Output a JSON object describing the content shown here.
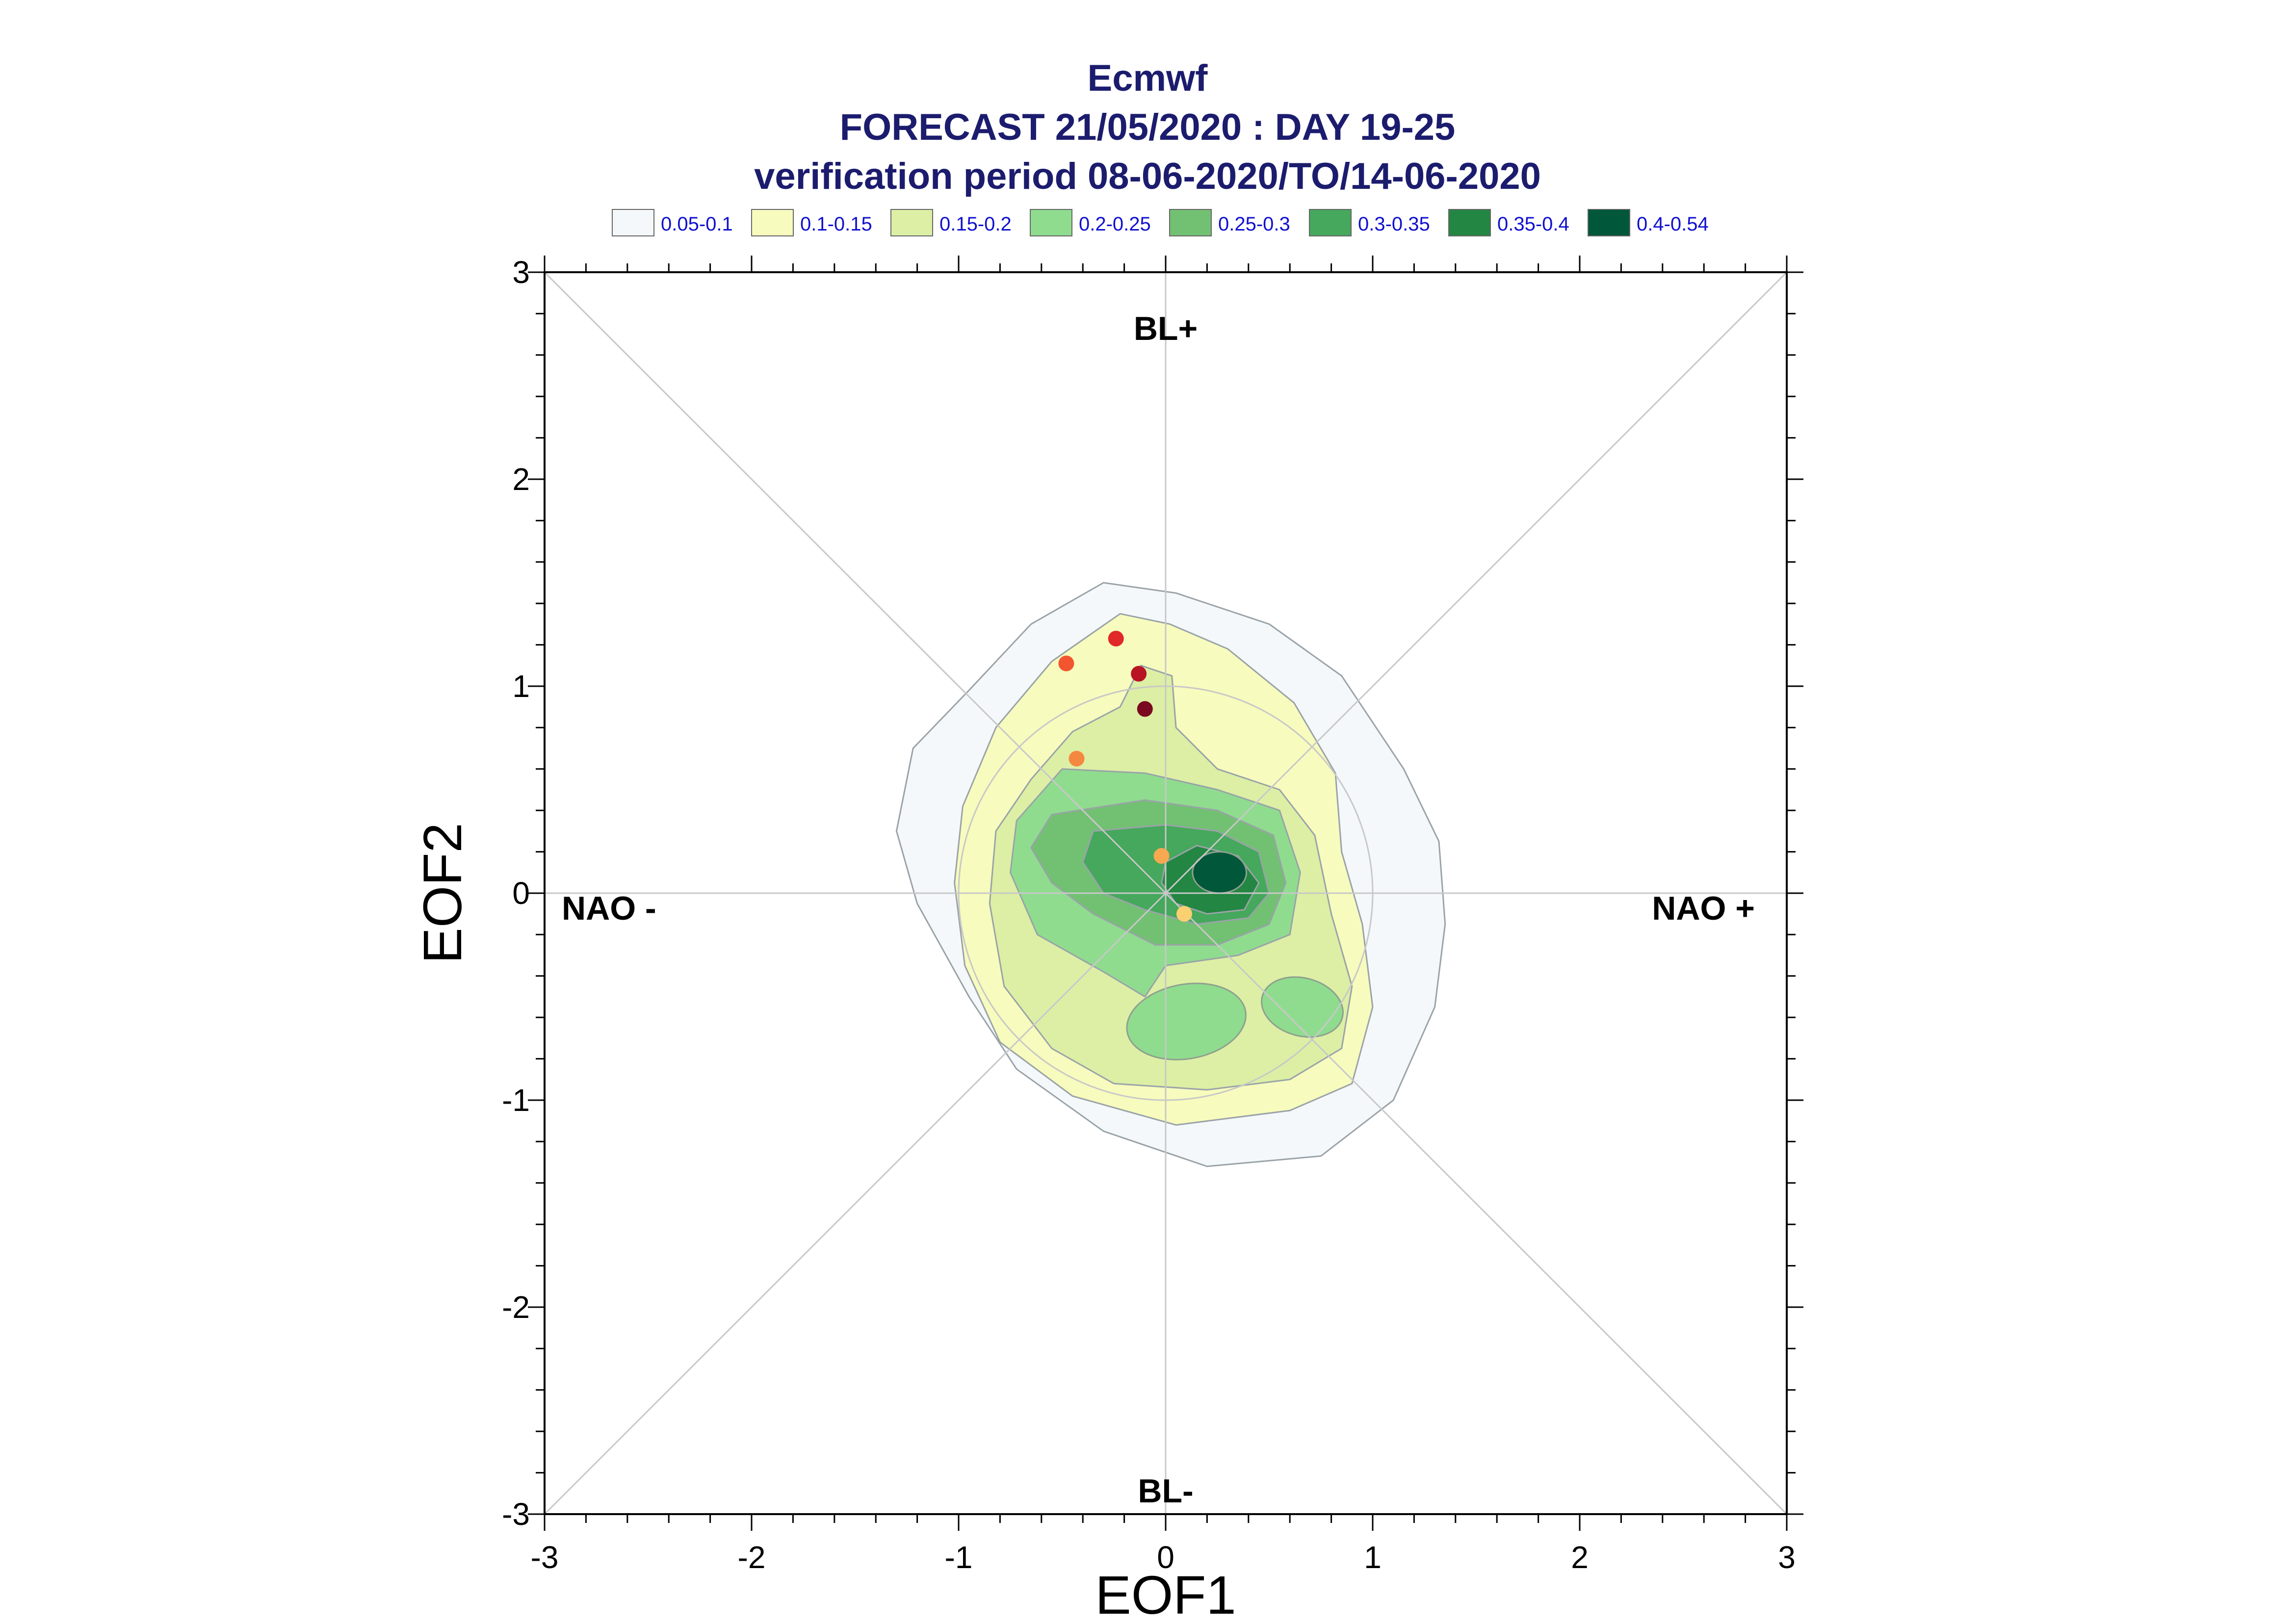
{
  "title": {
    "line1": "Ecmwf",
    "line2": "FORECAST 21/05/2020 : DAY 19-25",
    "line3": "verification period 08-06-2020/TO/14-06-2020"
  },
  "chart_data": {
    "type": "contour",
    "xlabel": "EOF1",
    "ylabel": "EOF2",
    "xlim": [
      -3,
      3
    ],
    "ylim": [
      -3,
      3
    ],
    "x_ticks": [
      "-3",
      "-2",
      "-1",
      "0",
      "1",
      "2",
      "3"
    ],
    "y_ticks": [
      "3",
      "2",
      "1",
      "0",
      "-1",
      "-2",
      "-3"
    ],
    "quadrant_labels": {
      "top": "BL+",
      "bottom": "BL-",
      "left": "NAO -",
      "right": "NAO +"
    },
    "legend": [
      {
        "label": "0.05-0.1",
        "color": "#f4f8fb"
      },
      {
        "label": "0.1-0.15",
        "color": "#f7fbbd"
      },
      {
        "label": "0.15-0.2",
        "color": "#dcefa5"
      },
      {
        "label": "0.2-0.25",
        "color": "#8fdc8f"
      },
      {
        "label": "0.25-0.3",
        "color": "#72c072"
      },
      {
        "label": "0.3-0.35",
        "color": "#45a85c"
      },
      {
        "label": "0.35-0.4",
        "color": "#238642"
      },
      {
        "label": "0.4-0.54",
        "color": "#00573a"
      }
    ],
    "points": [
      {
        "x": -0.24,
        "y": 1.23,
        "color": "#e02828"
      },
      {
        "x": -0.48,
        "y": 1.11,
        "color": "#f25530"
      },
      {
        "x": -0.13,
        "y": 1.06,
        "color": "#b81424"
      },
      {
        "x": -0.1,
        "y": 0.89,
        "color": "#7a0a20"
      },
      {
        "x": -0.43,
        "y": 0.65,
        "color": "#f58840"
      },
      {
        "x": -0.02,
        "y": 0.18,
        "color": "#f8a850"
      },
      {
        "x": 0.09,
        "y": -0.1,
        "color": "#fad070"
      }
    ],
    "reference_circle_radius": 1.0,
    "grid": false
  }
}
